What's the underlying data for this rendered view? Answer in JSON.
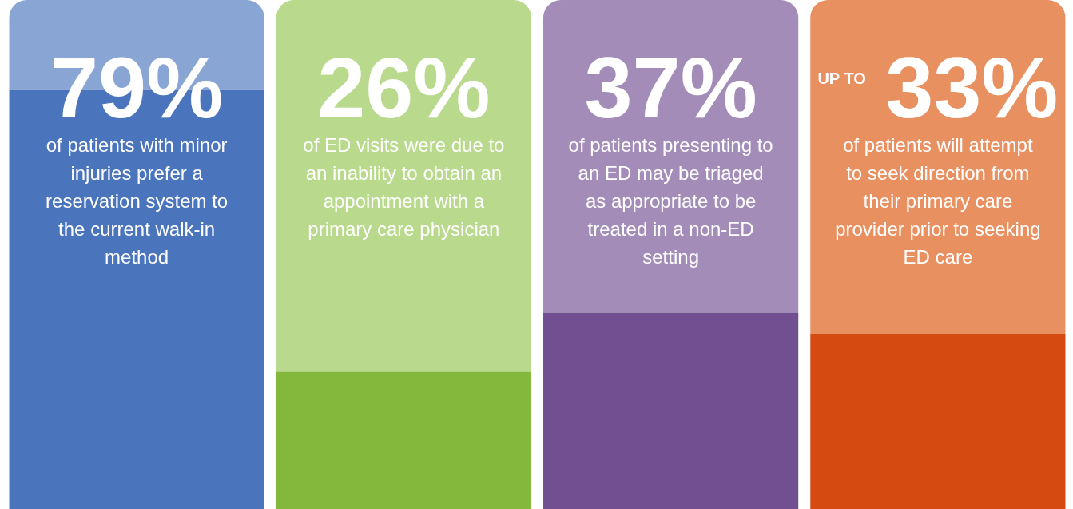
{
  "chart_data": {
    "type": "bar",
    "stacked": true,
    "categories": [
      "of patients with minor injuries prefer a reservation system to the current walk-in method",
      "of ED visits were due to an inability to obtain an appointment with a primary care physician",
      "of patients presenting to an ED may be triaged as appropriate to be treated  in a non-ED setting",
      "of patients will attempt to seek direction from their primary care provider prior to seeking ED care"
    ],
    "series": [
      {
        "values": [
          79,
          26,
          37,
          33
        ],
        "value_labels": [
          "79%",
          "26%",
          "37%",
          "UP TO 33%"
        ],
        "colors": [
          "#4a74bb",
          "#84b83d",
          "#714f91",
          "#d44a10"
        ]
      },
      {
        "values": [
          17,
          70,
          59,
          63
        ],
        "colors": [
          "#89a5d3",
          "#b9d98c",
          "#a38db8",
          "#e89060"
        ]
      }
    ],
    "ylim": [
      0,
      96
    ],
    "tick_labels": false,
    "grid": false,
    "legend": false
  }
}
